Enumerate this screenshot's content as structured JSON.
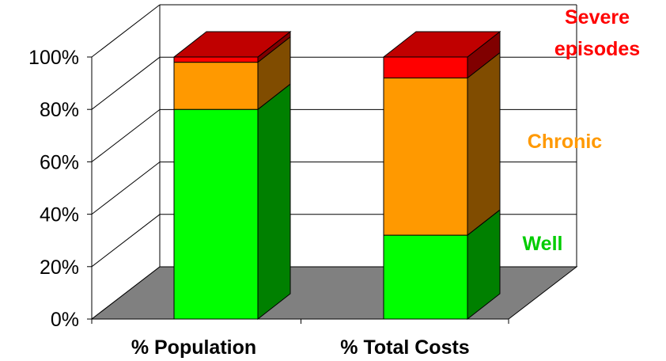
{
  "chart_data": {
    "type": "bar",
    "stacked": true,
    "three_d": true,
    "categories": [
      "% Population",
      "% Total Costs"
    ],
    "series": [
      {
        "name": "Well",
        "values": [
          80,
          32
        ],
        "color": "#00ff00",
        "side_color": "#008000"
      },
      {
        "name": "Chronic",
        "values": [
          18,
          60
        ],
        "color": "#ff9900",
        "side_color": "#804c00"
      },
      {
        "name": "Severe episodes",
        "values": [
          2,
          8
        ],
        "color": "#ff0000",
        "side_color": "#800000"
      }
    ],
    "y_ticks": [
      "0%",
      "20%",
      "40%",
      "60%",
      "80%",
      "100%"
    ],
    "ylim": [
      0,
      100
    ],
    "grid": true,
    "floor_color": "#808080",
    "legend_placement": "right, labels beside stack",
    "title": "",
    "xlabel": "",
    "ylabel": ""
  }
}
